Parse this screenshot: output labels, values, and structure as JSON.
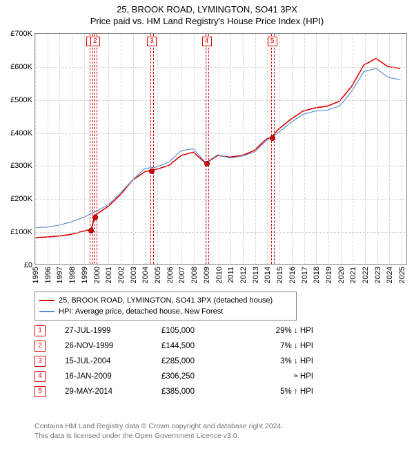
{
  "title1": "25, BROOK ROAD, LYMINGTON, SO41 3PX",
  "title2": "Price paid vs. HM Land Registry's House Price Index (HPI)",
  "chart": {
    "type": "line",
    "x_years": [
      1995,
      1996,
      1997,
      1998,
      1999,
      2000,
      2001,
      2002,
      2003,
      2004,
      2005,
      2006,
      2007,
      2008,
      2009,
      2010,
      2011,
      2012,
      2013,
      2014,
      2015,
      2016,
      2017,
      2018,
      2019,
      2020,
      2021,
      2022,
      2023,
      2024,
      2025
    ],
    "xlim": [
      1995,
      2025.5
    ],
    "ylim": [
      0,
      700000
    ],
    "ytick_step": 100000,
    "yticklabels": [
      "£0",
      "£100K",
      "£200K",
      "£300K",
      "£400K",
      "£500K",
      "£600K",
      "£700K"
    ],
    "grid_color": "#cccccc",
    "background_color": "#ffffff",
    "series": [
      {
        "name": "25, BROOK ROAD, LYMINGTON, SO41 3PX (detached house)",
        "color": "#e00000",
        "line_width": 1.6,
        "data": [
          [
            1995,
            80000
          ],
          [
            1996,
            82000
          ],
          [
            1997,
            85000
          ],
          [
            1998,
            90000
          ],
          [
            1999,
            100000
          ],
          [
            1999.6,
            105000
          ],
          [
            1999.9,
            144500
          ],
          [
            2000,
            150000
          ],
          [
            2001,
            175000
          ],
          [
            2002,
            210000
          ],
          [
            2003,
            255000
          ],
          [
            2004,
            280000
          ],
          [
            2004.5,
            285000
          ],
          [
            2005,
            288000
          ],
          [
            2006,
            300000
          ],
          [
            2007,
            330000
          ],
          [
            2008,
            340000
          ],
          [
            2009,
            306250
          ],
          [
            2010,
            330000
          ],
          [
            2011,
            325000
          ],
          [
            2012,
            330000
          ],
          [
            2013,
            345000
          ],
          [
            2014,
            380000
          ],
          [
            2014.4,
            385000
          ],
          [
            2015,
            410000
          ],
          [
            2016,
            440000
          ],
          [
            2017,
            465000
          ],
          [
            2018,
            475000
          ],
          [
            2019,
            480000
          ],
          [
            2020,
            495000
          ],
          [
            2021,
            540000
          ],
          [
            2022,
            605000
          ],
          [
            2023,
            625000
          ],
          [
            2024,
            600000
          ],
          [
            2025,
            595000
          ]
        ]
      },
      {
        "name": "HPI: Average price, detached house, New Forest",
        "color": "#5b8fd6",
        "line_width": 1.2,
        "data": [
          [
            1995,
            110000
          ],
          [
            1996,
            112000
          ],
          [
            1997,
            118000
          ],
          [
            1998,
            128000
          ],
          [
            1999,
            142000
          ],
          [
            2000,
            160000
          ],
          [
            2001,
            180000
          ],
          [
            2002,
            215000
          ],
          [
            2003,
            255000
          ],
          [
            2004,
            290000
          ],
          [
            2005,
            295000
          ],
          [
            2006,
            310000
          ],
          [
            2007,
            345000
          ],
          [
            2008,
            350000
          ],
          [
            2009,
            308000
          ],
          [
            2010,
            332000
          ],
          [
            2011,
            322000
          ],
          [
            2012,
            328000
          ],
          [
            2013,
            340000
          ],
          [
            2014,
            375000
          ],
          [
            2015,
            400000
          ],
          [
            2016,
            430000
          ],
          [
            2017,
            455000
          ],
          [
            2018,
            465000
          ],
          [
            2019,
            468000
          ],
          [
            2020,
            480000
          ],
          [
            2021,
            525000
          ],
          [
            2022,
            585000
          ],
          [
            2023,
            595000
          ],
          [
            2024,
            568000
          ],
          [
            2025,
            560000
          ]
        ]
      }
    ],
    "sale_markers": [
      {
        "n": "1",
        "x": 1999.57,
        "y": 105000,
        "box_top": true
      },
      {
        "n": "2",
        "x": 1999.9,
        "y": 144500,
        "box_top": true
      },
      {
        "n": "3",
        "x": 2004.54,
        "y": 285000,
        "box_top": true
      },
      {
        "n": "4",
        "x": 2009.04,
        "y": 306250,
        "box_top": true
      },
      {
        "n": "5",
        "x": 2014.41,
        "y": 385000,
        "box_top": true
      }
    ]
  },
  "legend": [
    {
      "color": "#e00000",
      "label": "25, BROOK ROAD, LYMINGTON, SO41 3PX (detached house)"
    },
    {
      "color": "#5b8fd6",
      "label": "HPI: Average price, detached house, New Forest"
    }
  ],
  "sales_table": [
    {
      "n": "1",
      "date": "27-JUL-1999",
      "price": "£105,000",
      "hpi": "29% ↓ HPI"
    },
    {
      "n": "2",
      "date": "26-NOV-1999",
      "price": "£144,500",
      "hpi": "7% ↓ HPI"
    },
    {
      "n": "3",
      "date": "15-JUL-2004",
      "price": "£285,000",
      "hpi": "3% ↓ HPI"
    },
    {
      "n": "4",
      "date": "16-JAN-2009",
      "price": "£306,250",
      "hpi": "≈ HPI"
    },
    {
      "n": "5",
      "date": "29-MAY-2014",
      "price": "£385,000",
      "hpi": "5% ↑ HPI"
    }
  ],
  "footer1": "Contains HM Land Registry data © Crown copyright and database right 2024.",
  "footer2": "This data is licensed under the Open Government Licence v3.0."
}
